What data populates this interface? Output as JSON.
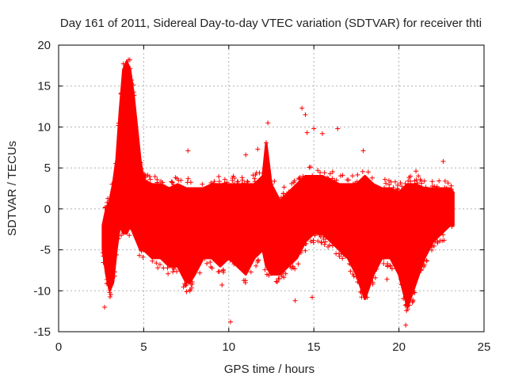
{
  "chart_data": {
    "type": "scatter",
    "title": "Day 161 of 2011, Sidereal Day-to-day VTEC variation (SDTVAR) for receiver thti",
    "xlabel": "GPS time / hours",
    "ylabel": "SDTVAR / TECUs",
    "xlim": [
      0,
      25
    ],
    "ylim": [
      -15,
      20
    ],
    "xticks": [
      0,
      5,
      10,
      15,
      20,
      25
    ],
    "yticks": [
      -15,
      -10,
      -5,
      0,
      5,
      10,
      15,
      20
    ],
    "grid": true,
    "marker": "+",
    "color": "#ff0000",
    "series": [
      {
        "name": "SDTVAR",
        "envelope": {
          "x": [
            2.6,
            2.8,
            3.0,
            3.2,
            3.4,
            3.6,
            3.8,
            4.0,
            4.2,
            4.4,
            4.6,
            4.8,
            5.0,
            5.5,
            6.0,
            6.5,
            7.0,
            7.5,
            7.7,
            8.0,
            8.5,
            9.0,
            9.5,
            10.0,
            10.5,
            11.0,
            11.5,
            12.0,
            12.2,
            12.5,
            13.0,
            13.5,
            14.0,
            14.5,
            15.0,
            15.5,
            16.0,
            16.5,
            17.0,
            17.5,
            18.0,
            18.5,
            19.0,
            19.5,
            20.0,
            20.5,
            21.0,
            21.5,
            22.0,
            22.5,
            23.0,
            23.2
          ],
          "upper": [
            -2,
            0,
            1,
            3,
            6,
            12,
            17,
            18,
            17,
            14,
            10,
            6,
            3.5,
            3,
            3,
            2.5,
            3,
            2.5,
            2.5,
            2.5,
            2.5,
            3,
            3,
            3,
            3,
            3,
            3,
            4,
            8,
            3,
            1,
            2,
            3,
            4,
            4,
            4,
            3.5,
            3,
            3,
            3,
            4,
            3,
            2.5,
            2.5,
            2,
            3,
            3,
            2.5,
            2.5,
            2.5,
            2.5,
            2
          ],
          "lower": [
            -5,
            -8,
            -10,
            -9,
            -5,
            -2,
            -3,
            -3,
            -2,
            -3,
            -4,
            -5,
            -5,
            -6,
            -6,
            -7,
            -7,
            -9,
            -9,
            -8,
            -6,
            -6,
            -7,
            -6,
            -7,
            -8,
            -6,
            -5,
            -7,
            -8,
            -8,
            -7,
            -6,
            -4,
            -3,
            -3,
            -4,
            -5,
            -6,
            -8,
            -11,
            -8,
            -6,
            -6,
            -8,
            -12,
            -9,
            -6,
            -4,
            -3,
            -2,
            -2
          ]
        },
        "outliers": [
          [
            2.7,
            -12
          ],
          [
            3.0,
            -10.2
          ],
          [
            4.1,
            18.2
          ],
          [
            7.6,
            7.1
          ],
          [
            9.6,
            -9.3
          ],
          [
            10.1,
            -13.8
          ],
          [
            11.0,
            6.6
          ],
          [
            11.7,
            7.3
          ],
          [
            12.3,
            10.5
          ],
          [
            13.9,
            -11.2
          ],
          [
            14.3,
            12.3
          ],
          [
            14.5,
            11.5
          ],
          [
            14.6,
            9.3
          ],
          [
            15.0,
            9.8
          ],
          [
            15.5,
            9.2
          ],
          [
            16.4,
            9.8
          ],
          [
            16.1,
            -4.5
          ],
          [
            17.9,
            7.1
          ],
          [
            20.4,
            -14.2
          ],
          [
            22.6,
            5.8
          ],
          [
            21.0,
            4.6
          ],
          [
            16.5,
            -5.8
          ],
          [
            14.9,
            -10.8
          ],
          [
            9.5,
            -5.5
          ],
          [
            19.3,
            -8.6
          ],
          [
            7.0,
            -6.5
          ]
        ]
      }
    ]
  }
}
